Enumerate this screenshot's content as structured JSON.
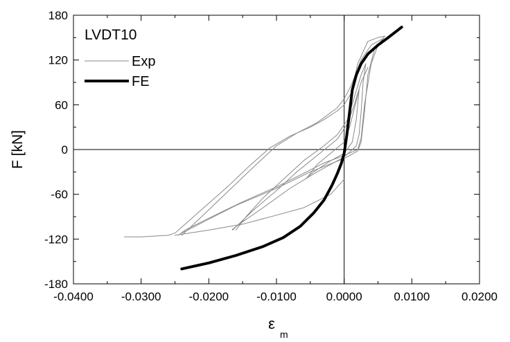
{
  "chart_data": {
    "type": "line",
    "annotation": "LVDT10",
    "xlabel": "ε",
    "xlabel_sub": "m",
    "ylabel": "F  [kN]",
    "xlim": [
      -0.04,
      0.02
    ],
    "ylim": [
      -180,
      180
    ],
    "xticks": [
      -0.04,
      -0.03,
      -0.02,
      -0.01,
      0.0,
      0.01,
      0.02
    ],
    "xtick_labels": [
      "-0.0400",
      "-0.0300",
      "-0.0200",
      "-0.0100",
      "0.0000",
      "0.0100",
      "0.0200"
    ],
    "yticks": [
      -180,
      -120,
      -60,
      0,
      60,
      120,
      180
    ],
    "ytick_labels": [
      "-180",
      "-120",
      "-60",
      "0",
      "60",
      "120",
      "180"
    ],
    "grid": false,
    "zero_lines": true,
    "legend_position": "top-left",
    "series": [
      {
        "name": "Exp",
        "color": "#888888",
        "style": "thin",
        "segments": [
          [
            [
              -0.0325,
              -117
            ],
            [
              -0.03,
              -117
            ],
            [
              -0.028,
              -116
            ],
            [
              -0.026,
              -115
            ],
            [
              -0.025,
              -112
            ],
            [
              -0.0245,
              -108
            ],
            [
              -0.023,
              -96
            ],
            [
              -0.02,
              -72
            ],
            [
              -0.017,
              -48
            ],
            [
              -0.014,
              -22
            ],
            [
              -0.011,
              2
            ],
            [
              -0.008,
              18
            ],
            [
              -0.005,
              30
            ],
            [
              -0.003,
              40
            ],
            [
              -0.001,
              52
            ],
            [
              0.0,
              60
            ],
            [
              0.001,
              75
            ],
            [
              0.0015,
              95
            ],
            [
              0.002,
              115
            ],
            [
              0.0035,
              145
            ],
            [
              0.005,
              150
            ],
            [
              0.006,
              152
            ]
          ],
          [
            [
              0.006,
              152
            ],
            [
              0.005,
              140
            ],
            [
              0.004,
              115
            ],
            [
              0.003,
              60
            ],
            [
              0.0025,
              15
            ],
            [
              0.002,
              0
            ],
            [
              0.0,
              -8
            ],
            [
              -0.003,
              -18
            ],
            [
              -0.006,
              -32
            ],
            [
              -0.01,
              -50
            ],
            [
              -0.015,
              -70
            ],
            [
              -0.02,
              -92
            ],
            [
              -0.0235,
              -108
            ],
            [
              -0.0245,
              -115
            ]
          ],
          [
            [
              -0.024,
              -115
            ],
            [
              -0.022,
              -98
            ],
            [
              -0.019,
              -72
            ],
            [
              -0.016,
              -46
            ],
            [
              -0.013,
              -20
            ],
            [
              -0.01,
              5
            ],
            [
              -0.007,
              22
            ],
            [
              -0.004,
              36
            ],
            [
              -0.001,
              56
            ],
            [
              0.0,
              68
            ],
            [
              0.001,
              85
            ],
            [
              0.0025,
              120
            ],
            [
              0.004,
              140
            ],
            [
              0.0058,
              149
            ]
          ],
          [
            [
              0.0058,
              149
            ],
            [
              0.0045,
              135
            ],
            [
              0.0035,
              100
            ],
            [
              0.003,
              50
            ],
            [
              0.0025,
              10
            ],
            [
              0.002,
              -2
            ],
            [
              0.0,
              -12
            ],
            [
              -0.005,
              -30
            ],
            [
              -0.01,
              -52
            ],
            [
              -0.016,
              -75
            ],
            [
              -0.021,
              -98
            ],
            [
              -0.024,
              -112
            ]
          ],
          [
            [
              -0.016,
              -108
            ],
            [
              -0.0145,
              -90
            ],
            [
              -0.012,
              -65
            ],
            [
              -0.009,
              -40
            ],
            [
              -0.006,
              -15
            ],
            [
              -0.003,
              5
            ],
            [
              -0.001,
              20
            ],
            [
              0.0005,
              40
            ],
            [
              0.0015,
              70
            ],
            [
              0.0025,
              100
            ],
            [
              0.0032,
              115
            ]
          ],
          [
            [
              0.0032,
              115
            ],
            [
              0.0028,
              90
            ],
            [
              0.0025,
              50
            ],
            [
              0.0022,
              20
            ],
            [
              0.0018,
              5
            ],
            [
              0.0,
              -10
            ],
            [
              -0.004,
              -30
            ],
            [
              -0.008,
              -52
            ],
            [
              -0.012,
              -78
            ],
            [
              -0.0155,
              -100
            ],
            [
              -0.0165,
              -107
            ]
          ],
          [
            [
              -0.0165,
              -108
            ],
            [
              -0.0135,
              -82
            ],
            [
              -0.01,
              -55
            ],
            [
              -0.007,
              -30
            ],
            [
              -0.004,
              -8
            ],
            [
              -0.001,
              14
            ],
            [
              0.0005,
              35
            ],
            [
              0.0015,
              60
            ],
            [
              0.0025,
              90
            ],
            [
              0.0035,
              110
            ]
          ],
          [
            [
              -0.0055,
              -38
            ],
            [
              -0.004,
              -20
            ],
            [
              -0.002,
              -5
            ],
            [
              0.0,
              10
            ],
            [
              0.0008,
              30
            ],
            [
              0.0015,
              55
            ],
            [
              0.0022,
              80
            ]
          ],
          [
            [
              0.0022,
              80
            ],
            [
              0.0018,
              40
            ],
            [
              0.0012,
              10
            ],
            [
              0.0,
              -5
            ],
            [
              -0.002,
              -15
            ],
            [
              -0.0045,
              -30
            ],
            [
              -0.0058,
              -40
            ]
          ],
          [
            [
              -0.025,
              -115
            ],
            [
              -0.02,
              -108
            ],
            [
              -0.015,
              -100
            ],
            [
              -0.01,
              -88
            ],
            [
              -0.006,
              -78
            ],
            [
              -0.002,
              -60
            ],
            [
              0.0,
              -40
            ]
          ]
        ]
      },
      {
        "name": "FE",
        "color": "#000000",
        "style": "thick",
        "segments": [
          [
            [
              -0.024,
              -160
            ],
            [
              -0.02,
              -152
            ],
            [
              -0.016,
              -142
            ],
            [
              -0.012,
              -130
            ],
            [
              -0.009,
              -118
            ],
            [
              -0.0065,
              -103
            ],
            [
              -0.0045,
              -85
            ],
            [
              -0.003,
              -68
            ],
            [
              -0.0018,
              -48
            ],
            [
              -0.001,
              -32
            ],
            [
              -0.0004,
              -18
            ],
            [
              0.0,
              -5
            ],
            [
              0.0004,
              20
            ],
            [
              0.0008,
              50
            ],
            [
              0.0012,
              80
            ],
            [
              0.0018,
              100
            ],
            [
              0.0025,
              115
            ],
            [
              0.0035,
              128
            ],
            [
              0.005,
              140
            ],
            [
              0.0065,
              150
            ],
            [
              0.0085,
              164
            ]
          ]
        ]
      }
    ]
  }
}
